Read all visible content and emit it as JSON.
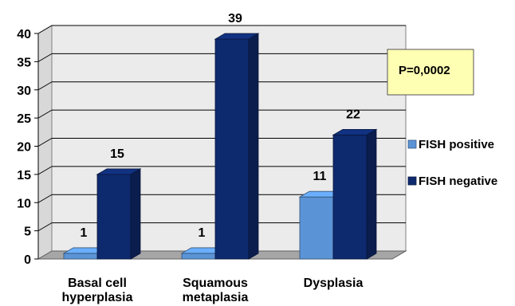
{
  "chart_data": {
    "type": "bar",
    "title": "",
    "xlabel": "",
    "ylabel": "",
    "categories": [
      [
        "Basal cell",
        "hyperplasia"
      ],
      [
        "Squamous",
        "metaplasia"
      ],
      [
        "Dysplasia"
      ]
    ],
    "series": [
      {
        "name": "FISH positive",
        "values": [
          1,
          1,
          11
        ],
        "color": "#5b94d6"
      },
      {
        "name": "FISH negative",
        "values": [
          15,
          39,
          22
        ],
        "color": "#0e2a6e"
      }
    ],
    "ylim": [
      0,
      40
    ],
    "yticks": [
      "0",
      "5",
      "10",
      "15",
      "20",
      "25",
      "30",
      "35",
      "40"
    ],
    "grid": true,
    "legend_position": "right",
    "annotation": "P=0,0002",
    "annotation_fill": "#ffffb3"
  }
}
